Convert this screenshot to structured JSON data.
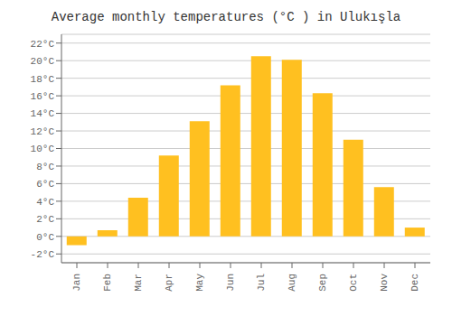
{
  "chart_data": {
    "type": "bar",
    "title": "Average monthly temperatures (°C ) in Ulukışla",
    "categories": [
      "Jan",
      "Feb",
      "Mar",
      "Apr",
      "May",
      "Jun",
      "Jul",
      "Aug",
      "Sep",
      "Oct",
      "Nov",
      "Dec"
    ],
    "values": [
      -1.0,
      0.7,
      4.4,
      9.2,
      13.1,
      17.2,
      20.5,
      20.1,
      16.3,
      11.0,
      5.6,
      1.0
    ],
    "color": "#FFC020",
    "ylim": [
      -3,
      23
    ],
    "yticks": [
      {
        "value": -2,
        "label": "-2°C"
      },
      {
        "value": 0,
        "label": "0°C"
      },
      {
        "value": 2,
        "label": "2°C"
      },
      {
        "value": 4,
        "label": "4°C"
      },
      {
        "value": 6,
        "label": "6°C"
      },
      {
        "value": 8,
        "label": "8°C"
      },
      {
        "value": 10,
        "label": "10°C"
      },
      {
        "value": 12,
        "label": "12°C"
      },
      {
        "value": 14,
        "label": "14°C"
      },
      {
        "value": 16,
        "label": "16°C"
      },
      {
        "value": 18,
        "label": "18°C"
      },
      {
        "value": 20,
        "label": "20°C"
      },
      {
        "value": 22,
        "label": "22°C"
      }
    ],
    "grid": true
  }
}
